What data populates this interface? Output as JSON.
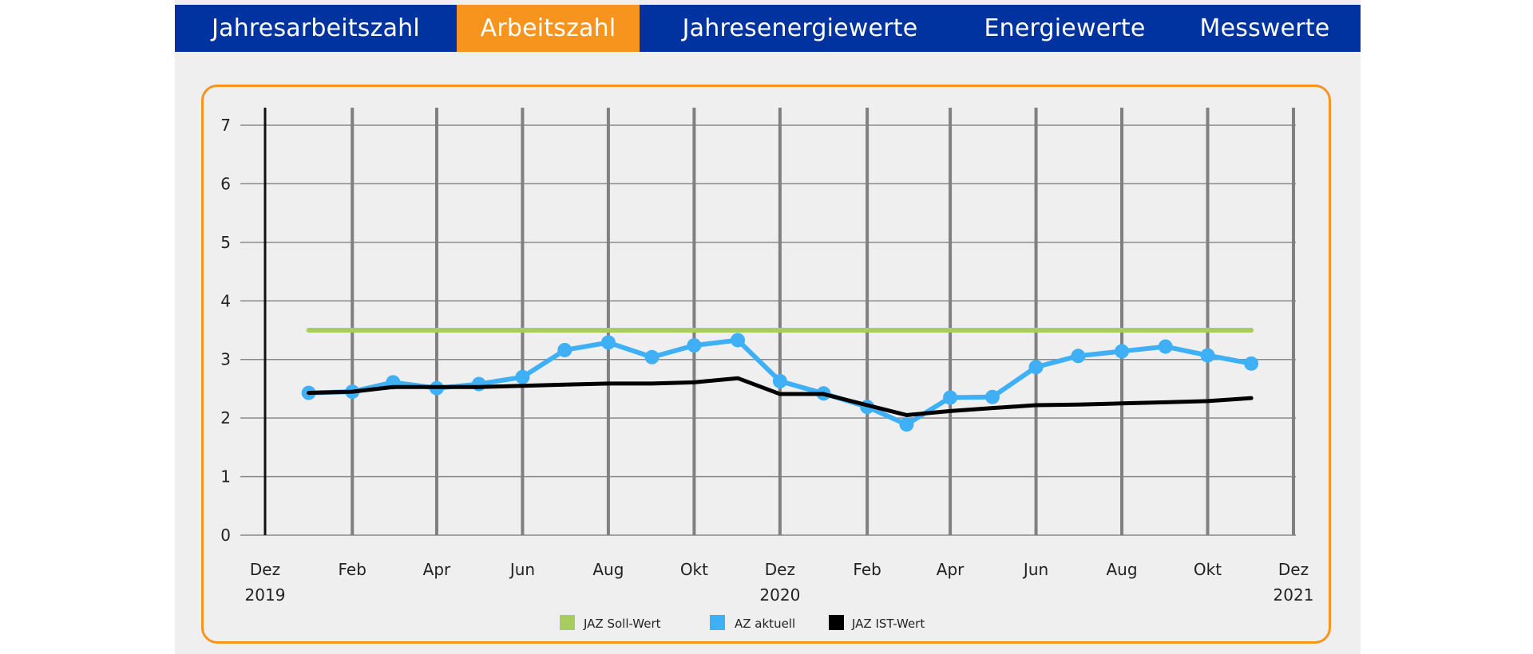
{
  "tabs": [
    {
      "label": "Jahresarbeitszahl",
      "active": false
    },
    {
      "label": "Arbeitszahl",
      "active": true
    },
    {
      "label": "Jahresenergiewerte",
      "active": false
    },
    {
      "label": "Energiewerte",
      "active": false
    },
    {
      "label": "Messwerte",
      "active": false
    }
  ],
  "colors": {
    "nav_bg": "#0033a0",
    "active_tab": "#f7941d",
    "card_border": "#f7941d",
    "soll": "#a8cd5e",
    "aktuell": "#3fb0f5",
    "ist": "#000000"
  },
  "chart_data": {
    "type": "line",
    "title": "",
    "xlabel": "",
    "ylabel": "",
    "ylim": [
      0,
      7
    ],
    "yticks": [
      0,
      1,
      2,
      3,
      4,
      5,
      6,
      7
    ],
    "x_ticks": [
      {
        "date": "2019-12-01",
        "label": "Dez",
        "year": "2019"
      },
      {
        "date": "2020-02-01",
        "label": "Feb",
        "year": ""
      },
      {
        "date": "2020-04-01",
        "label": "Apr",
        "year": ""
      },
      {
        "date": "2020-06-01",
        "label": "Jun",
        "year": ""
      },
      {
        "date": "2020-08-01",
        "label": "Aug",
        "year": ""
      },
      {
        "date": "2020-10-01",
        "label": "Okt",
        "year": ""
      },
      {
        "date": "2020-12-01",
        "label": "Dez",
        "year": "2020"
      },
      {
        "date": "2021-02-01",
        "label": "Feb",
        "year": ""
      },
      {
        "date": "2021-04-01",
        "label": "Apr",
        "year": ""
      },
      {
        "date": "2021-06-01",
        "label": "Jun",
        "year": ""
      },
      {
        "date": "2021-08-01",
        "label": "Aug",
        "year": ""
      },
      {
        "date": "2021-10-01",
        "label": "Okt",
        "year": ""
      },
      {
        "date": "2021-12-01",
        "label": "Dez",
        "year": "2021"
      }
    ],
    "xlim": [
      "2019-12-01",
      "2021-12-01"
    ],
    "grid": true,
    "legend_position": "bottom-center",
    "x": [
      "2020-01-01",
      "2020-02-01",
      "2020-03-01",
      "2020-04-01",
      "2020-05-01",
      "2020-06-01",
      "2020-07-01",
      "2020-08-01",
      "2020-09-01",
      "2020-10-01",
      "2020-11-01",
      "2020-12-01",
      "2021-01-01",
      "2021-02-01",
      "2021-03-01",
      "2021-04-01",
      "2021-05-01",
      "2021-06-01",
      "2021-07-01",
      "2021-08-01",
      "2021-09-01",
      "2021-10-01",
      "2021-11-01"
    ],
    "series": [
      {
        "name": "JAZ Soll-Wert",
        "color": "#a8cd5e",
        "markers": false,
        "width": 6,
        "values": [
          3.5,
          3.5,
          3.5,
          3.5,
          3.5,
          3.5,
          3.5,
          3.5,
          3.5,
          3.5,
          3.5,
          3.5,
          3.5,
          3.5,
          3.5,
          3.5,
          3.5,
          3.5,
          3.5,
          3.5,
          3.5,
          3.5,
          3.5
        ]
      },
      {
        "name": "AZ aktuell",
        "color": "#3fb0f5",
        "markers": true,
        "width": 6,
        "values": [
          2.43,
          2.45,
          2.61,
          2.51,
          2.58,
          2.7,
          3.16,
          3.29,
          3.04,
          3.24,
          3.33,
          2.63,
          2.42,
          2.19,
          1.89,
          2.35,
          2.36,
          2.87,
          3.06,
          3.14,
          3.22,
          3.07,
          2.93
        ]
      },
      {
        "name": "JAZ IST-Wert",
        "color": "#000000",
        "markers": false,
        "width": 5,
        "values": [
          2.43,
          2.45,
          2.53,
          2.53,
          2.53,
          2.55,
          2.57,
          2.59,
          2.59,
          2.61,
          2.68,
          2.41,
          2.41,
          2.22,
          2.05,
          2.12,
          2.17,
          2.22,
          2.23,
          2.25,
          2.27,
          2.29,
          2.34
        ]
      }
    ]
  }
}
